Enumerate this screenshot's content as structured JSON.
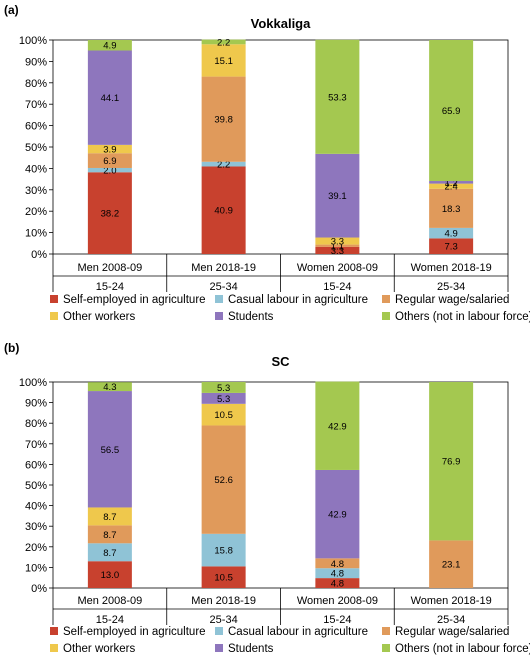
{
  "colors": {
    "self_employed": "#c8412e",
    "casual": "#8fc3d6",
    "regular": "#e09a5b",
    "other_workers": "#efc84c",
    "students": "#8e76bd",
    "not_in_lf": "#a4c850"
  },
  "legend": [
    {
      "key": "self_employed",
      "label": "Self-employed in agriculture"
    },
    {
      "key": "casual",
      "label": "Casual labour in agriculture"
    },
    {
      "key": "regular",
      "label": "Regular wage/salaried"
    },
    {
      "key": "other_workers",
      "label": "Other workers"
    },
    {
      "key": "students",
      "label": "Students"
    },
    {
      "key": "not_in_lf",
      "label": "Others (not in labour force)"
    }
  ],
  "chart_data": [
    {
      "type": "bar",
      "stacked": true,
      "panel": "(a)",
      "title": "Vokkaliga",
      "ylim": [
        0,
        100
      ],
      "y_ticks": [
        "0%",
        "10%",
        "20%",
        "30%",
        "40%",
        "50%",
        "60%",
        "70%",
        "80%",
        "90%",
        "100%"
      ],
      "categories": [
        "Men 2008-09",
        "Men 2018-19",
        "Women 2008-09",
        "Women 2018-19"
      ],
      "age_groups": [
        "15-24",
        "25-34",
        "15-24",
        "25-34"
      ],
      "series": [
        {
          "name": "Self-employed in agriculture",
          "key": "self_employed",
          "values": [
            38.2,
            40.9,
            3.3,
            7.3
          ],
          "labels": [
            "38.2",
            "40.9",
            "3.3",
            "7.3"
          ]
        },
        {
          "name": "Casual labour in agriculture",
          "key": "casual",
          "values": [
            2.0,
            2.2,
            0,
            4.9
          ],
          "labels": [
            "2.0",
            "2.2",
            "",
            "4.9"
          ]
        },
        {
          "name": "Regular wage/salaried",
          "key": "regular",
          "values": [
            6.9,
            39.8,
            1.1,
            18.3
          ],
          "labels": [
            "6.9",
            "39.8",
            "1.1",
            "18.3"
          ]
        },
        {
          "name": "Other workers",
          "key": "other_workers",
          "values": [
            3.9,
            15.1,
            3.3,
            2.4
          ],
          "labels": [
            "3.9",
            "15.1",
            "3.3",
            "2.4"
          ]
        },
        {
          "name": "Students",
          "key": "students",
          "values": [
            44.1,
            0,
            39.1,
            1.2
          ],
          "labels": [
            "44.1",
            "",
            "39.1",
            "1.2"
          ]
        },
        {
          "name": "Others (not in labour force)",
          "key": "not_in_lf",
          "values": [
            4.9,
            2.2,
            53.3,
            65.9
          ],
          "labels": [
            "4.9",
            "2.2",
            "53.3",
            "65.9"
          ]
        }
      ]
    },
    {
      "type": "bar",
      "stacked": true,
      "panel": "(b)",
      "title": "SC",
      "ylim": [
        0,
        100
      ],
      "y_ticks": [
        "0%",
        "10%",
        "20%",
        "30%",
        "40%",
        "50%",
        "60%",
        "70%",
        "80%",
        "90%",
        "100%"
      ],
      "categories": [
        "Men 2008-09",
        "Men 2018-19",
        "Women 2008-09",
        "Women 2018-19"
      ],
      "age_groups": [
        "15-24",
        "25-34",
        "15-24",
        "25-34"
      ],
      "series": [
        {
          "name": "Self-employed in agriculture",
          "key": "self_employed",
          "values": [
            13.0,
            10.5,
            4.8,
            0
          ],
          "labels": [
            "13.0",
            "10.5",
            "4.8",
            ""
          ]
        },
        {
          "name": "Casual labour in agriculture",
          "key": "casual",
          "values": [
            8.7,
            15.8,
            4.8,
            0
          ],
          "labels": [
            "8.7",
            "15.8",
            "4.8",
            ""
          ]
        },
        {
          "name": "Regular wage/salaried",
          "key": "regular",
          "values": [
            8.7,
            52.6,
            4.8,
            23.1
          ],
          "labels": [
            "8.7",
            "52.6",
            "4.8",
            "23.1"
          ]
        },
        {
          "name": "Other workers",
          "key": "other_workers",
          "values": [
            8.7,
            10.5,
            0,
            0
          ],
          "labels": [
            "8.7",
            "10.5",
            "",
            ""
          ]
        },
        {
          "name": "Students",
          "key": "students",
          "values": [
            56.5,
            5.3,
            42.9,
            0
          ],
          "labels": [
            "56.5",
            "5.3",
            "42.9",
            ""
          ]
        },
        {
          "name": "Others (not in labour force)",
          "key": "not_in_lf",
          "values": [
            4.3,
            5.3,
            42.9,
            76.9
          ],
          "labels": [
            "4.3",
            "5.3",
            "42.9",
            "76.9"
          ]
        }
      ]
    }
  ]
}
